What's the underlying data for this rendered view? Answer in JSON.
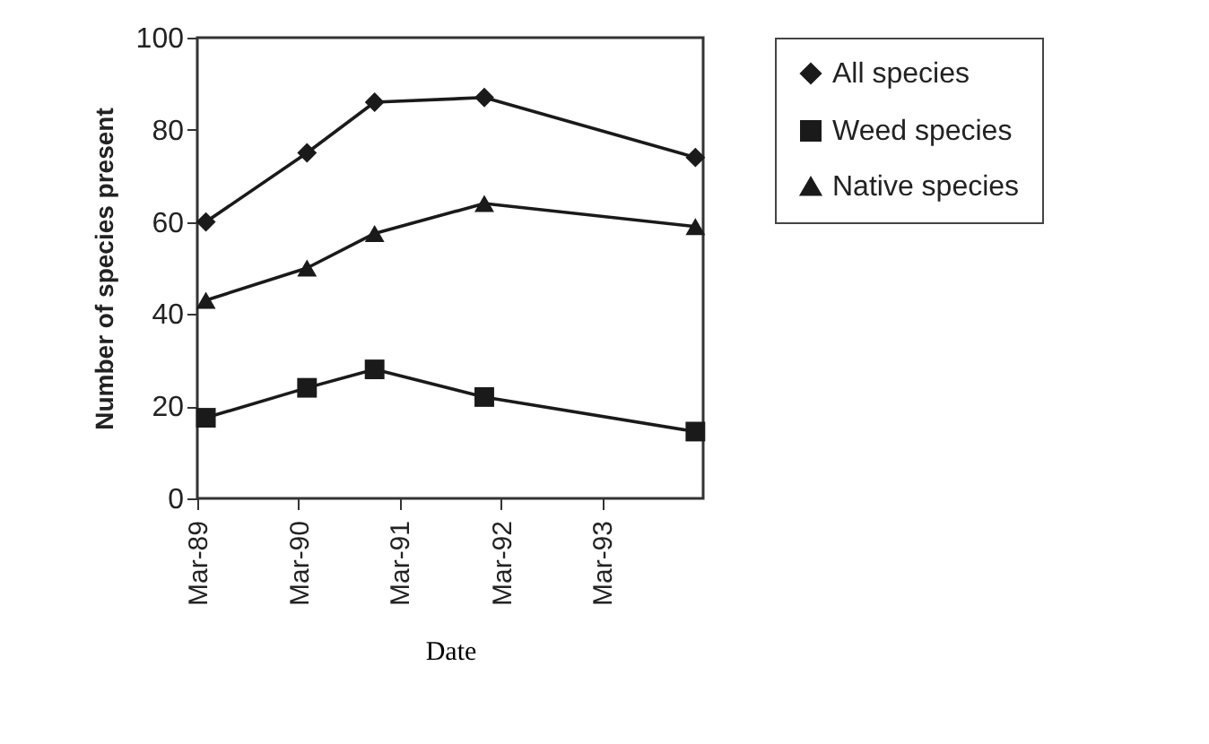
{
  "chart_data": {
    "type": "line",
    "xlabel": "Date",
    "ylabel": "Number of species present",
    "x": [
      "1989-04",
      "1990-04",
      "1990-12",
      "1992-01",
      "1994-02"
    ],
    "series": [
      {
        "name": "All species",
        "color": "#1a1a1a",
        "marker": "diamond",
        "values": [
          60,
          75,
          86,
          87,
          74
        ]
      },
      {
        "name": "Weed species",
        "color": "#1a1a1a",
        "marker": "square",
        "values": [
          17.5,
          24,
          28,
          22,
          14.5
        ]
      },
      {
        "name": "Native species",
        "color": "#1a1a1a",
        "marker": "triangle",
        "values": [
          43,
          50,
          57.5,
          64,
          59
        ]
      }
    ],
    "xlim": [
      "1989-03",
      "1994-03"
    ],
    "xticks": [
      {
        "value": "1989-03",
        "label": "Mar-89"
      },
      {
        "value": "1990-03",
        "label": "Mar-90"
      },
      {
        "value": "1991-03",
        "label": "Mar-91"
      },
      {
        "value": "1992-03",
        "label": "Mar-92"
      },
      {
        "value": "1993-03",
        "label": "Mar-93"
      }
    ],
    "ylim": [
      0,
      100
    ],
    "yticks": [
      0,
      20,
      40,
      60,
      80,
      100
    ],
    "grid": false,
    "legend": "right",
    "line_style": "solid"
  }
}
